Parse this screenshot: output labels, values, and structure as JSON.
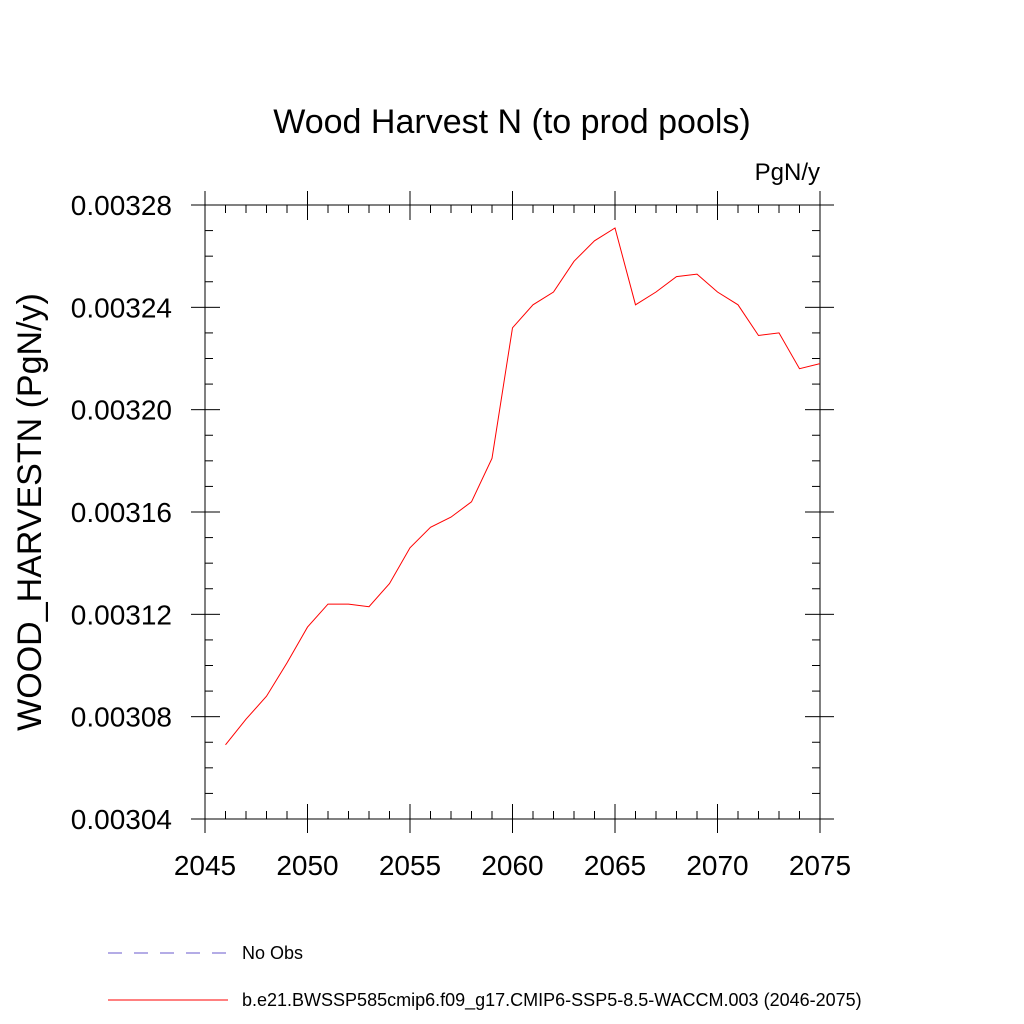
{
  "chart_data": {
    "type": "line",
    "title": "Wood Harvest N (to prod pools)",
    "units_label": "PgN/y",
    "ylabel": "WOOD_HARVESTN  (PgN/y)",
    "xlabel": "",
    "xlim": [
      2045,
      2075
    ],
    "ylim": [
      0.00304,
      0.00328
    ],
    "x_ticks": [
      2045,
      2050,
      2055,
      2060,
      2065,
      2070,
      2075
    ],
    "x_tick_labels": [
      "2045",
      "2050",
      "2055",
      "2060",
      "2065",
      "2070",
      "2075"
    ],
    "y_ticks": [
      0.00304,
      0.00308,
      0.00312,
      0.00316,
      0.0032,
      0.00324,
      0.00328
    ],
    "y_tick_labels": [
      "0.00304",
      "0.00308",
      "0.00312",
      "0.00316",
      "0.00320",
      "0.00324",
      "0.00328"
    ],
    "grid": false,
    "legend_position": "bottom",
    "series": [
      {
        "name": "b.e21.BWSSP585cmip6.f09_g17.CMIP6-SSP5-8.5-WACCM.003 (2046-2075)",
        "color": "#ff0000",
        "style": "solid",
        "x": [
          2046,
          2047,
          2048,
          2049,
          2050,
          2051,
          2052,
          2053,
          2054,
          2055,
          2056,
          2057,
          2058,
          2059,
          2060,
          2061,
          2062,
          2063,
          2064,
          2065,
          2066,
          2067,
          2068,
          2069,
          2070,
          2071,
          2072,
          2073,
          2074,
          2075
        ],
        "y": [
          0.003069,
          0.003079,
          0.003088,
          0.003101,
          0.003115,
          0.003124,
          0.003124,
          0.003123,
          0.003132,
          0.003146,
          0.003154,
          0.003158,
          0.003164,
          0.003181,
          0.003232,
          0.003241,
          0.003246,
          0.003258,
          0.003266,
          0.003271,
          0.003241,
          0.003246,
          0.003252,
          0.003253,
          0.003246,
          0.003241,
          0.003229,
          0.00323,
          0.003216,
          0.003218
        ]
      },
      {
        "name": "No Obs",
        "color": "#6a5acd",
        "style": "dashed",
        "x": [],
        "y": []
      }
    ]
  }
}
